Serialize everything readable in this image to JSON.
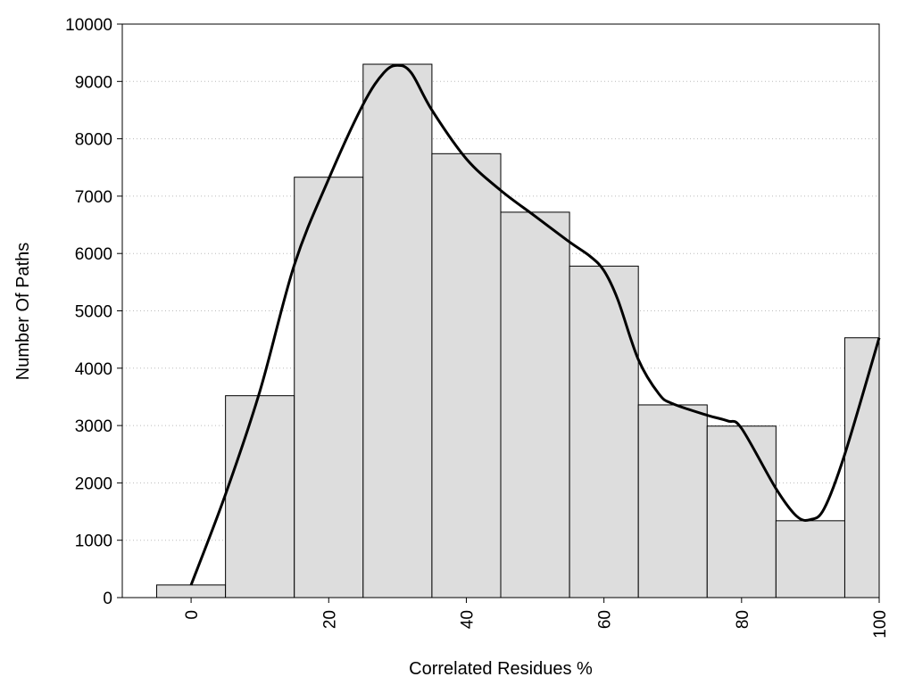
{
  "chart_data": {
    "type": "bar",
    "title": "",
    "xlabel": "Correlated Residues %",
    "ylabel": "Number Of Paths",
    "xlim": [
      -10,
      100
    ],
    "ylim": [
      0,
      10000
    ],
    "grid": "y dotted",
    "bins": [
      {
        "x0": -5,
        "x1": 5,
        "value": 220
      },
      {
        "x0": 5,
        "x1": 15,
        "value": 3520
      },
      {
        "x0": 15,
        "x1": 25,
        "value": 7330
      },
      {
        "x0": 25,
        "x1": 35,
        "value": 9300
      },
      {
        "x0": 35,
        "x1": 45,
        "value": 7740
      },
      {
        "x0": 45,
        "x1": 55,
        "value": 6720
      },
      {
        "x0": 55,
        "x1": 65,
        "value": 5780
      },
      {
        "x0": 65,
        "x1": 75,
        "value": 3360
      },
      {
        "x0": 75,
        "x1": 85,
        "value": 2990
      },
      {
        "x0": 85,
        "x1": 95,
        "value": 1340
      },
      {
        "x0": 95,
        "x1": 105,
        "value": 4530
      }
    ],
    "curve": {
      "x": [
        0,
        5,
        10,
        15,
        20,
        25,
        28,
        30,
        32,
        35,
        40,
        45,
        50,
        55,
        58,
        60,
        62,
        65,
        68,
        70,
        75,
        78,
        80,
        85,
        88,
        90,
        92,
        95,
        100
      ],
      "y": [
        220,
        1800,
        3600,
        5800,
        7300,
        8600,
        9150,
        9280,
        9150,
        8500,
        7650,
        7100,
        6650,
        6200,
        5950,
        5700,
        5200,
        4150,
        3550,
        3380,
        3180,
        3080,
        2950,
        1900,
        1420,
        1360,
        1550,
        2500,
        4530
      ]
    },
    "xticks": [
      0,
      20,
      40,
      60,
      80,
      100
    ],
    "xtick_labels": [
      "0",
      "20",
      "40",
      "60",
      "80",
      "100"
    ],
    "yticks": [
      0,
      1000,
      2000,
      3000,
      4000,
      5000,
      6000,
      7000,
      8000,
      9000,
      10000
    ],
    "ytick_labels": [
      "0",
      "1000",
      "2000",
      "3000",
      "4000",
      "5000",
      "6000",
      "7000",
      "8000",
      "9000",
      "10000"
    ],
    "colors": {
      "bar_fill": "#dddddd",
      "bar_stroke": "#000000",
      "curve": "#000000",
      "grid": "#bbbbbb"
    }
  }
}
